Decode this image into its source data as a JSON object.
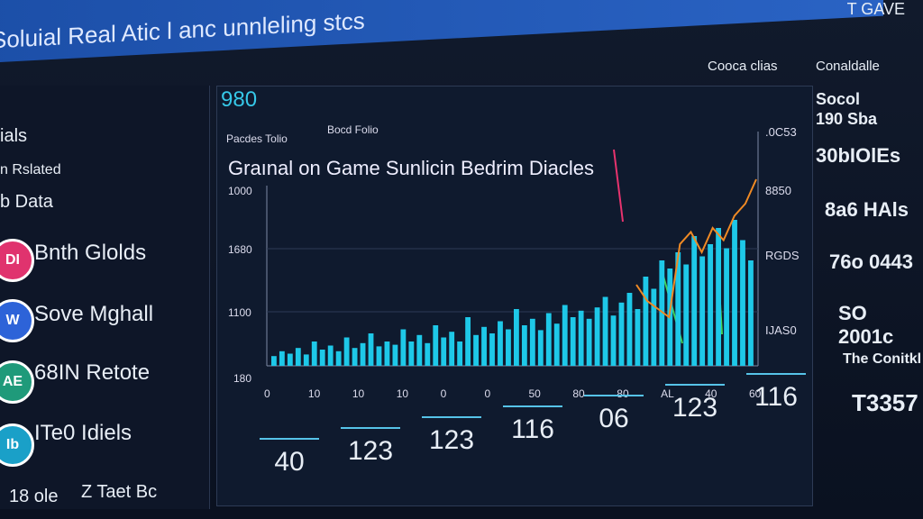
{
  "banner": {
    "title": "Soluial Real Atic l anc unnleling stcs",
    "corner": "T GAVE"
  },
  "left_panel": {
    "heading": "ials",
    "subheading": "n Rslated",
    "section": "b Data",
    "items": [
      {
        "icon": "DI",
        "label": "Bnth Glolds"
      },
      {
        "icon": "W",
        "label": "Sove Mghall"
      },
      {
        "icon": "AE",
        "label": "68IN Retote"
      },
      {
        "icon": "Ib",
        "label": "ITe0 Idiels"
      }
    ],
    "footer": [
      "18 ole",
      "Z Taet Bc"
    ]
  },
  "center_panel": {
    "code": "980",
    "tabs": [
      "Pacdes Tolio",
      "Bocd Folio"
    ],
    "title": "Graınal on Game Sunlicin Bedrim Diacles",
    "left_axis": [
      "1000",
      "1680",
      "1100",
      "180"
    ],
    "right_axis": [
      ".0C53",
      "8850",
      "RGDS",
      "IJAS0"
    ],
    "bottom_axis": [
      "0",
      "10",
      "10",
      "10",
      "0",
      "0",
      "50",
      "80",
      "80",
      "AL",
      "40",
      "60"
    ],
    "bars": [
      12,
      18,
      15,
      22,
      14,
      30,
      20,
      25,
      18,
      35,
      22,
      28,
      40,
      24,
      30,
      26,
      45,
      30,
      38,
      28,
      50,
      35,
      42,
      30,
      60,
      38,
      48,
      40,
      55,
      45,
      70,
      50,
      58,
      44,
      65,
      52,
      75,
      60,
      68,
      58,
      72,
      85,
      62,
      78,
      90,
      70,
      110,
      95,
      130,
      120,
      140,
      125,
      160,
      135,
      150,
      170,
      145,
      180,
      155,
      130
    ],
    "trend": [
      100,
      80,
      70,
      60,
      150,
      165,
      140,
      170,
      155,
      185,
      200,
      230
    ]
  },
  "stats": [
    "40",
    "123",
    "123",
    "116",
    "06",
    "123",
    "116"
  ],
  "right_panel": {
    "items": [
      "Cooca clias",
      "Conaldalle",
      "Socol",
      "190 Sba",
      "30bIOlEs",
      "8a6 HAls",
      "76o 0443",
      "SO 2001c",
      "The Conitkl",
      "T3357"
    ]
  }
}
